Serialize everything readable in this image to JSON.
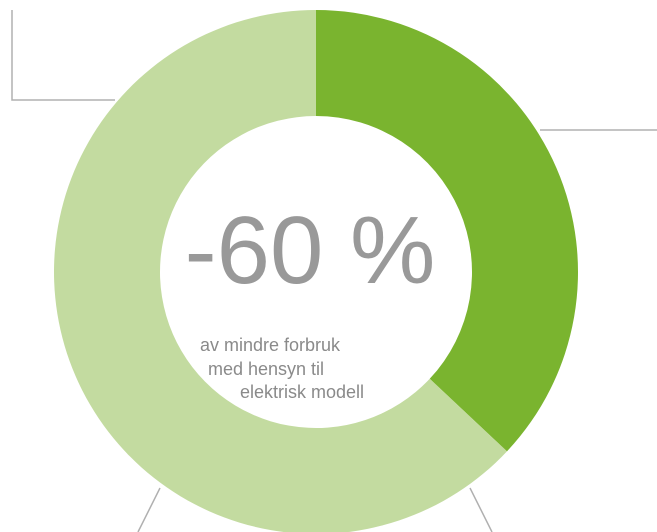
{
  "chart_data": {
    "type": "pie",
    "hole": true,
    "values": [
      37,
      63
    ],
    "colors": [
      "#7ab42f",
      "#c3dba0"
    ],
    "center_label": "-60 %",
    "annotation": [
      "av mindre forbruk",
      "med hensyn til",
      "elektrisk modell"
    ]
  }
}
